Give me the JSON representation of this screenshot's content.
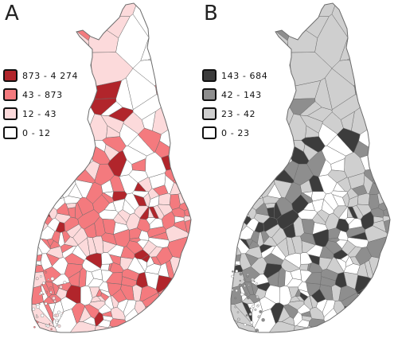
{
  "panels": [
    {
      "letter": "A",
      "legend": [
        {
          "label": "873 - 4 274",
          "color": "#b1252b"
        },
        {
          "label": "43 - 873",
          "color": "#f47a7e"
        },
        {
          "label": "12 - 43",
          "color": "#fcdadb"
        },
        {
          "label": "0 - 12",
          "color": "#ffffff"
        }
      ],
      "outline_color": "#6c6c6c"
    },
    {
      "letter": "B",
      "legend": [
        {
          "label": "143 - 684",
          "color": "#3c3c3c"
        },
        {
          "label": "42 - 143",
          "color": "#8e8e8e"
        },
        {
          "label": "23 - 42",
          "color": "#cfcfcf"
        },
        {
          "label": "0  - 23",
          "color": "#ffffff"
        }
      ],
      "outline_color": "#6c6c6c"
    }
  ]
}
